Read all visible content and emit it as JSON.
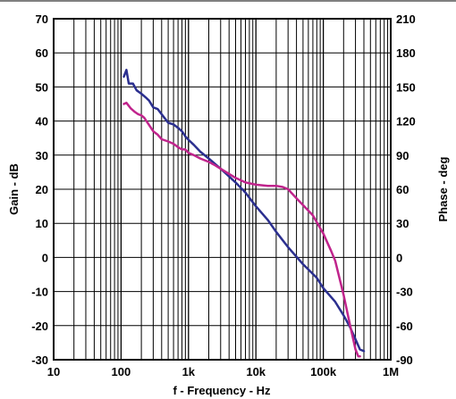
{
  "chart_data": {
    "type": "line",
    "title": "",
    "xlabel": "f - Frequency - Hz",
    "ylabel_left": "Gain - dB",
    "ylabel_right": "Phase - deg",
    "x_scale": "log",
    "xlim": [
      10,
      1000000
    ],
    "ylim_left": [
      -30,
      70
    ],
    "ylim_right": [
      -90,
      210
    ],
    "grid": true,
    "x_ticks": [
      {
        "value": 10,
        "label": "10"
      },
      {
        "value": 100,
        "label": "100"
      },
      {
        "value": 1000,
        "label": "1k"
      },
      {
        "value": 10000,
        "label": "10k"
      },
      {
        "value": 100000,
        "label": "100k"
      },
      {
        "value": 1000000,
        "label": "1M"
      }
    ],
    "y_ticks_left": [
      {
        "value": 70,
        "label": "70"
      },
      {
        "value": 60,
        "label": "60"
      },
      {
        "value": 50,
        "label": "50"
      },
      {
        "value": 40,
        "label": "40"
      },
      {
        "value": 30,
        "label": "30"
      },
      {
        "value": 20,
        "label": "20"
      },
      {
        "value": 10,
        "label": "10"
      },
      {
        "value": 0,
        "label": "0"
      },
      {
        "value": -10,
        "label": "-10"
      },
      {
        "value": -20,
        "label": "-20"
      },
      {
        "value": -30,
        "label": "-30"
      }
    ],
    "y_ticks_right": [
      {
        "value": 210,
        "label": "210"
      },
      {
        "value": 180,
        "label": "180"
      },
      {
        "value": 150,
        "label": "150"
      },
      {
        "value": 120,
        "label": "120"
      },
      {
        "value": 90,
        "label": "90"
      },
      {
        "value": 60,
        "label": "60"
      },
      {
        "value": 30,
        "label": "30"
      },
      {
        "value": 0,
        "label": "0"
      },
      {
        "value": -30,
        "label": "-30"
      },
      {
        "value": -60,
        "label": "-60"
      },
      {
        "value": -90,
        "label": "-90"
      }
    ],
    "series": [
      {
        "axis": "left",
        "color": "#2b2f8f",
        "points": [
          [
            110,
            53
          ],
          [
            120,
            55
          ],
          [
            130,
            51
          ],
          [
            150,
            51
          ],
          [
            170,
            49
          ],
          [
            200,
            48
          ],
          [
            230,
            47
          ],
          [
            260,
            46
          ],
          [
            300,
            44
          ],
          [
            350,
            43.5
          ],
          [
            400,
            42
          ],
          [
            500,
            39.5
          ],
          [
            600,
            39
          ],
          [
            700,
            38
          ],
          [
            800,
            37
          ],
          [
            900,
            35.5
          ],
          [
            1000,
            34.5
          ],
          [
            1200,
            33
          ],
          [
            1500,
            31
          ],
          [
            2000,
            29
          ],
          [
            3000,
            26
          ],
          [
            5000,
            22
          ],
          [
            7000,
            19
          ],
          [
            10000,
            15
          ],
          [
            15000,
            11
          ],
          [
            20000,
            7.5
          ],
          [
            30000,
            3
          ],
          [
            50000,
            -2
          ],
          [
            80000,
            -6
          ],
          [
            100000,
            -9
          ],
          [
            150000,
            -13
          ],
          [
            200000,
            -17
          ],
          [
            250000,
            -20.5
          ],
          [
            300000,
            -24
          ],
          [
            350000,
            -27
          ],
          [
            400000,
            -27.5
          ]
        ]
      },
      {
        "axis": "right",
        "color": "#c0248c",
        "points": [
          [
            110,
            135
          ],
          [
            120,
            136
          ],
          [
            140,
            131
          ],
          [
            160,
            128
          ],
          [
            180,
            126
          ],
          [
            200,
            125
          ],
          [
            220,
            123
          ],
          [
            250,
            118
          ],
          [
            300,
            111
          ],
          [
            350,
            108
          ],
          [
            400,
            104
          ],
          [
            500,
            102
          ],
          [
            600,
            100
          ],
          [
            700,
            97
          ],
          [
            800,
            95
          ],
          [
            900,
            95
          ],
          [
            1000,
            92
          ],
          [
            1200,
            90
          ],
          [
            1500,
            87
          ],
          [
            2000,
            84
          ],
          [
            2500,
            81
          ],
          [
            3000,
            78
          ],
          [
            5000,
            70
          ],
          [
            7000,
            66
          ],
          [
            10000,
            64
          ],
          [
            15000,
            63
          ],
          [
            20000,
            63
          ],
          [
            25000,
            62
          ],
          [
            30000,
            60
          ],
          [
            40000,
            52
          ],
          [
            50000,
            46
          ],
          [
            70000,
            37
          ],
          [
            100000,
            21
          ],
          [
            130000,
            6
          ],
          [
            150000,
            -3
          ],
          [
            200000,
            -33
          ],
          [
            250000,
            -60
          ],
          [
            300000,
            -81
          ],
          [
            330000,
            -87
          ],
          [
            350000,
            -87
          ]
        ]
      }
    ]
  }
}
